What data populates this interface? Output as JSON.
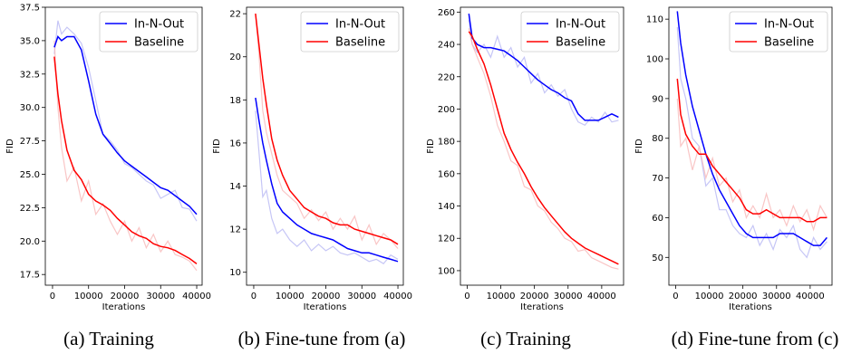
{
  "colors": {
    "in_n_out": "#0000ff",
    "baseline": "#ff0000",
    "in_n_out_raw": "#b8b8f4",
    "baseline_raw": "#f8b8b8"
  },
  "chart_data": [
    {
      "type": "line",
      "caption": "(a) Training",
      "xlabel": "Iterations",
      "ylabel": "FID",
      "xlim": [
        -2000,
        41500
      ],
      "ylim": [
        16.7,
        37.5
      ],
      "xticks": [
        0,
        10000,
        20000,
        30000,
        40000
      ],
      "yticks": [
        17.5,
        20.0,
        22.5,
        25.0,
        27.5,
        30.0,
        32.5,
        35.0,
        37.5
      ],
      "ytick_decimals": 1,
      "legend": "top-right",
      "series": [
        {
          "name": "In-N-Out",
          "x": [
            500,
            1500,
            2500,
            4000,
            6000,
            8000,
            10000,
            12000,
            14000,
            16000,
            18000,
            20000,
            22000,
            24000,
            26000,
            28000,
            30000,
            32000,
            34000,
            36000,
            38000,
            40000
          ],
          "y": [
            34.5,
            35.3,
            35.0,
            35.3,
            35.3,
            34.3,
            32.0,
            29.5,
            28.0,
            27.3,
            26.6,
            26.0,
            25.6,
            25.2,
            24.8,
            24.4,
            24.0,
            23.8,
            23.4,
            23.0,
            22.6,
            22.0
          ],
          "raw_y": [
            34.0,
            36.5,
            35.5,
            36.0,
            35.5,
            34.8,
            33.0,
            30.5,
            28.0,
            27.5,
            26.8,
            25.8,
            25.5,
            25.0,
            24.5,
            24.2,
            23.2,
            23.5,
            23.8,
            22.5,
            22.4,
            21.5
          ]
        },
        {
          "name": "Baseline",
          "x": [
            500,
            1500,
            2500,
            4000,
            6000,
            8000,
            10000,
            12000,
            14000,
            16000,
            18000,
            20000,
            22000,
            24000,
            26000,
            28000,
            30000,
            32000,
            34000,
            36000,
            38000,
            40000
          ],
          "y": [
            33.8,
            31.0,
            29.0,
            26.8,
            25.3,
            24.6,
            23.5,
            23.0,
            22.7,
            22.3,
            21.7,
            21.2,
            20.7,
            20.4,
            20.2,
            19.8,
            19.6,
            19.5,
            19.3,
            19.0,
            18.7,
            18.3
          ],
          "raw_y": [
            35.0,
            30.0,
            27.0,
            24.5,
            25.5,
            23.0,
            24.5,
            22.0,
            22.8,
            21.5,
            20.5,
            21.5,
            20.0,
            21.0,
            19.5,
            20.5,
            19.2,
            20.0,
            19.0,
            18.8,
            18.5,
            17.8
          ]
        }
      ]
    },
    {
      "type": "line",
      "caption": "(b) Fine-tune from (a)",
      "xlabel": "Iterations",
      "ylabel": "FID",
      "xlim": [
        -2000,
        41500
      ],
      "ylim": [
        9.4,
        22.3
      ],
      "xticks": [
        0,
        10000,
        20000,
        30000,
        40000
      ],
      "yticks": [
        10,
        12,
        14,
        16,
        18,
        20,
        22
      ],
      "ytick_decimals": 0,
      "legend": "top-right",
      "series": [
        {
          "name": "In-N-Out",
          "x": [
            500,
            1500,
            2500,
            3500,
            5000,
            6500,
            8000,
            10000,
            12000,
            14000,
            16000,
            18000,
            20000,
            22000,
            24000,
            26000,
            28000,
            30000,
            32000,
            34000,
            36000,
            38000,
            40000
          ],
          "y": [
            18.1,
            17.0,
            16.0,
            15.2,
            14.1,
            13.2,
            12.8,
            12.5,
            12.2,
            12.0,
            11.8,
            11.7,
            11.6,
            11.5,
            11.3,
            11.1,
            11.0,
            10.9,
            10.9,
            10.8,
            10.7,
            10.6,
            10.5
          ],
          "raw_y": [
            17.5,
            15.5,
            13.5,
            13.8,
            12.5,
            11.8,
            12.0,
            11.5,
            11.2,
            11.5,
            11.0,
            11.3,
            11.0,
            11.2,
            10.9,
            10.8,
            10.9,
            10.7,
            10.5,
            10.6,
            10.4,
            10.8,
            10.6
          ]
        },
        {
          "name": "Baseline",
          "x": [
            500,
            1500,
            2500,
            3500,
            5000,
            6500,
            8000,
            10000,
            12000,
            14000,
            16000,
            18000,
            20000,
            22000,
            24000,
            26000,
            28000,
            30000,
            32000,
            34000,
            36000,
            38000,
            40000
          ],
          "y": [
            22.0,
            20.5,
            19.0,
            17.8,
            16.2,
            15.2,
            14.5,
            13.8,
            13.4,
            13.0,
            12.8,
            12.6,
            12.5,
            12.3,
            12.2,
            12.2,
            12.0,
            11.9,
            11.8,
            11.7,
            11.6,
            11.5,
            11.3
          ],
          "raw_y": [
            22.0,
            20.0,
            17.5,
            16.5,
            15.5,
            14.5,
            13.8,
            13.5,
            13.2,
            12.5,
            12.9,
            12.4,
            12.8,
            12.0,
            12.5,
            12.0,
            12.6,
            11.5,
            12.2,
            11.3,
            11.8,
            11.5,
            11.1
          ]
        }
      ]
    },
    {
      "type": "line",
      "caption": "(c) Training",
      "xlabel": "Iterations",
      "ylabel": "FID",
      "xlim": [
        -2000,
        46500
      ],
      "ylim": [
        91,
        263
      ],
      "xticks": [
        0,
        10000,
        20000,
        30000,
        40000
      ],
      "yticks": [
        100,
        120,
        140,
        160,
        180,
        200,
        220,
        240,
        260
      ],
      "ytick_decimals": 0,
      "legend": "top-right",
      "series": [
        {
          "name": "In-N-Out",
          "x": [
            500,
            1500,
            3000,
            5000,
            7000,
            9000,
            11000,
            13000,
            15000,
            17000,
            19000,
            21000,
            23000,
            25000,
            27000,
            29000,
            31000,
            33000,
            35000,
            37000,
            39000,
            41000,
            43000,
            45000
          ],
          "y": [
            259,
            244,
            240,
            238,
            238,
            237,
            236,
            233,
            230,
            226,
            222,
            218,
            215,
            212,
            210,
            207,
            205,
            197,
            193,
            193,
            193,
            195,
            197,
            195
          ],
          "raw_y": [
            255,
            240,
            235,
            240,
            232,
            245,
            232,
            238,
            226,
            232,
            216,
            222,
            210,
            215,
            208,
            212,
            200,
            192,
            190,
            195,
            192,
            198,
            192,
            193
          ]
        },
        {
          "name": "Baseline",
          "x": [
            500,
            1500,
            3000,
            5000,
            7000,
            9000,
            11000,
            13000,
            15000,
            17000,
            19000,
            21000,
            23000,
            25000,
            27000,
            29000,
            31000,
            33000,
            35000,
            37000,
            39000,
            41000,
            43000,
            45000
          ],
          "y": [
            248,
            245,
            237,
            228,
            215,
            200,
            185,
            175,
            167,
            160,
            152,
            145,
            139,
            134,
            129,
            124,
            120,
            117,
            114,
            112,
            110,
            108,
            106,
            104
          ],
          "raw_y": [
            250,
            240,
            232,
            222,
            208,
            190,
            180,
            168,
            165,
            152,
            150,
            140,
            137,
            130,
            126,
            120,
            118,
            112,
            113,
            108,
            106,
            104,
            102,
            101
          ]
        }
      ]
    },
    {
      "type": "line",
      "caption": "(d) Fine-tune from (c)",
      "xlabel": "Iterations",
      "ylabel": "FID",
      "xlim": [
        -2000,
        46500
      ],
      "ylim": [
        43,
        113
      ],
      "xticks": [
        0,
        10000,
        20000,
        30000,
        40000
      ],
      "yticks": [
        50,
        60,
        70,
        80,
        90,
        100,
        110
      ],
      "ytick_decimals": 0,
      "legend": "top-right",
      "series": [
        {
          "name": "In-N-Out",
          "x": [
            500,
            1500,
            3000,
            5000,
            7000,
            9000,
            11000,
            13000,
            15000,
            17000,
            19000,
            21000,
            23000,
            25000,
            27000,
            29000,
            31000,
            33000,
            35000,
            37000,
            39000,
            41000,
            43000,
            45000
          ],
          "y": [
            112,
            104,
            96,
            88,
            82,
            76,
            71,
            67,
            64,
            61,
            58,
            56,
            55,
            55,
            55,
            55,
            56,
            56,
            56,
            55,
            54,
            53,
            53,
            55
          ],
          "raw_y": [
            108,
            95,
            90,
            80,
            78,
            68,
            70,
            62,
            62,
            58,
            56,
            55,
            58,
            53,
            56,
            52,
            57,
            55,
            58,
            52,
            50,
            55,
            52,
            54
          ]
        },
        {
          "name": "Baseline",
          "x": [
            500,
            1500,
            3000,
            5000,
            7000,
            9000,
            11000,
            13000,
            15000,
            17000,
            19000,
            21000,
            23000,
            25000,
            27000,
            29000,
            31000,
            33000,
            35000,
            37000,
            39000,
            41000,
            43000,
            45000
          ],
          "y": [
            95,
            86,
            81,
            78,
            76,
            76,
            73,
            71,
            69,
            67,
            65,
            62,
            61,
            61,
            62,
            61,
            60,
            60,
            60,
            60,
            59,
            59,
            60,
            60
          ],
          "raw_y": [
            90,
            78,
            80,
            72,
            78,
            70,
            75,
            68,
            70,
            64,
            67,
            60,
            63,
            60,
            66,
            60,
            62,
            58,
            63,
            59,
            62,
            57,
            63,
            60
          ]
        }
      ]
    }
  ]
}
